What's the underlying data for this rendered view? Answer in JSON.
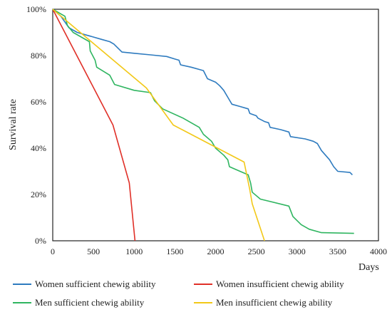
{
  "chart_data": {
    "type": "line",
    "title": "",
    "xlabel": "Days",
    "ylabel": "Survival rate",
    "xlim": [
      0,
      4000
    ],
    "ylim": [
      0,
      100
    ],
    "x_ticks": [
      "0",
      "500",
      "1000",
      "1500",
      "2000",
      "2500",
      "3000",
      "3500",
      "4000"
    ],
    "y_ticks": [
      "0%",
      "20%",
      "40%",
      "60%",
      "80%",
      "100%"
    ],
    "grid": false,
    "legend_position": "bottom",
    "series": [
      {
        "name": "Women sufficient chewig ability",
        "color": "#2e7bbf",
        "points": [
          [
            0,
            100
          ],
          [
            100,
            97
          ],
          [
            200,
            92
          ],
          [
            300,
            90
          ],
          [
            400,
            89
          ],
          [
            500,
            88
          ],
          [
            600,
            87
          ],
          [
            700,
            86
          ],
          [
            750,
            85
          ],
          [
            850,
            81.5
          ],
          [
            1000,
            81
          ],
          [
            1200,
            80.3
          ],
          [
            1400,
            79.6
          ],
          [
            1500,
            78.5
          ],
          [
            1550,
            78
          ],
          [
            1570,
            76
          ],
          [
            1700,
            75
          ],
          [
            1800,
            74
          ],
          [
            1850,
            73.5
          ],
          [
            1900,
            70
          ],
          [
            2000,
            68.5
          ],
          [
            2050,
            67
          ],
          [
            2100,
            65
          ],
          [
            2150,
            62
          ],
          [
            2200,
            59
          ],
          [
            2300,
            58
          ],
          [
            2400,
            57
          ],
          [
            2420,
            55
          ],
          [
            2500,
            54
          ],
          [
            2520,
            53
          ],
          [
            2600,
            51.5
          ],
          [
            2650,
            51
          ],
          [
            2670,
            49
          ],
          [
            2800,
            48
          ],
          [
            2900,
            47
          ],
          [
            2920,
            45
          ],
          [
            3100,
            44
          ],
          [
            3200,
            43
          ],
          [
            3250,
            42
          ],
          [
            3300,
            39
          ],
          [
            3400,
            35
          ],
          [
            3450,
            32
          ],
          [
            3500,
            30
          ],
          [
            3650,
            29.5
          ],
          [
            3680,
            28.5
          ]
        ]
      },
      {
        "name": "Women insufficient chewig ability",
        "color": "#e03028",
        "points": [
          [
            0,
            100
          ],
          [
            740,
            50
          ],
          [
            940,
            25
          ],
          [
            1010,
            0
          ]
        ]
      },
      {
        "name": "Men sufficient chewig ability",
        "color": "#2fb560",
        "points": [
          [
            0,
            100
          ],
          [
            150,
            97
          ],
          [
            180,
            93
          ],
          [
            250,
            90
          ],
          [
            450,
            86
          ],
          [
            460,
            82
          ],
          [
            520,
            78
          ],
          [
            540,
            75
          ],
          [
            700,
            71.5
          ],
          [
            760,
            67.5
          ],
          [
            1000,
            65
          ],
          [
            1200,
            64
          ],
          [
            1250,
            60.5
          ],
          [
            1350,
            57
          ],
          [
            1600,
            53
          ],
          [
            1800,
            49
          ],
          [
            1850,
            46
          ],
          [
            1950,
            43
          ],
          [
            2000,
            40
          ],
          [
            2100,
            37
          ],
          [
            2150,
            35
          ],
          [
            2170,
            32
          ],
          [
            2300,
            30
          ],
          [
            2400,
            28.5
          ],
          [
            2430,
            25
          ],
          [
            2450,
            21
          ],
          [
            2550,
            18
          ],
          [
            2900,
            15
          ],
          [
            2950,
            10.5
          ],
          [
            3050,
            7
          ],
          [
            3150,
            5
          ],
          [
            3300,
            3.5
          ],
          [
            3700,
            3.2
          ]
        ]
      },
      {
        "name": "Men insufficient chewig ability",
        "color": "#f2c818",
        "points": [
          [
            0,
            100
          ],
          [
            1150,
            66
          ],
          [
            1480,
            50
          ],
          [
            2350,
            34
          ],
          [
            2420,
            22
          ],
          [
            2450,
            16
          ],
          [
            2600,
            0
          ]
        ]
      }
    ]
  }
}
